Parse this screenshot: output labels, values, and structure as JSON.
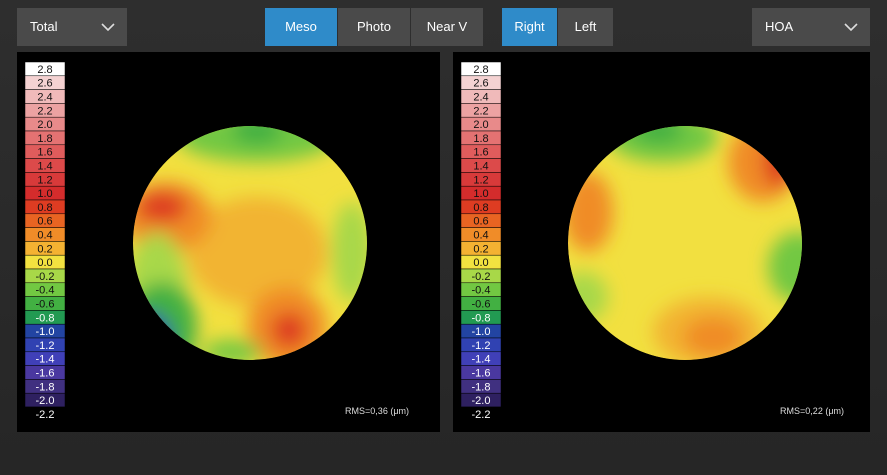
{
  "toolbar": {
    "map_dropdown": "Total",
    "lighting_buttons": [
      "Meso",
      "Photo",
      "Near V"
    ],
    "eye_buttons": [
      "Right",
      "Left"
    ],
    "aberration_dropdown": "HOA"
  },
  "scale": {
    "labels": [
      "2.8",
      "2.6",
      "2.4",
      "2.2",
      "2.0",
      "1.8",
      "1.6",
      "1.4",
      "1.2",
      "1.0",
      "0.8",
      "0.6",
      "0.4",
      "0.2",
      "0.0",
      "-0.2",
      "-0.4",
      "-0.6",
      "-0.8",
      "-1.0",
      "-1.2",
      "-1.4",
      "-1.6",
      "-1.8",
      "-2.0",
      "-2.2"
    ],
    "colors": [
      "#ffffff",
      "#f4d2d2",
      "#f0baba",
      "#eca2a2",
      "#e88a8a",
      "#e47272",
      "#e05c5c",
      "#dc4a4a",
      "#d83a3a",
      "#d42c2c",
      "#de3c22",
      "#e86422",
      "#f08c28",
      "#f4b232",
      "#f2e240",
      "#a8d848",
      "#72c842",
      "#42b042",
      "#229a52",
      "#2244a2",
      "#3042b2",
      "#4040b8",
      "#4a38a0",
      "#403080",
      "#2e2060",
      "#000000"
    ]
  },
  "panels": [
    {
      "rms": "RMS=0,36 (μm)"
    },
    {
      "rms": "RMS=0,22 (μm)"
    }
  ]
}
